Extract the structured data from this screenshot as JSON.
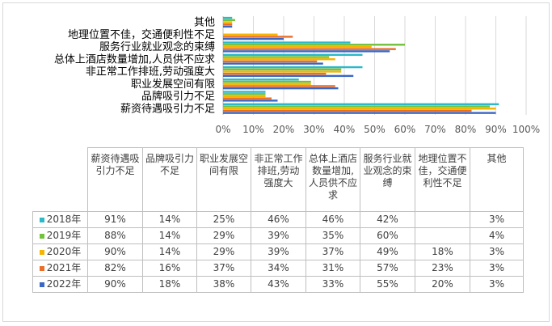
{
  "chart_data": {
    "type": "bar",
    "orientation": "horizontal",
    "categories": [
      "薪资待遇吸引力不足",
      "品牌吸引力不足",
      "职业发展空间有限",
      "非正常工作排班,劳动强度大",
      "总体上酒店数量增加,人员供不应求",
      "服务行业就业观念的束缚",
      "地理位置不佳，交通便利性不足",
      "其他"
    ],
    "table_headers": [
      "薪资待遇吸引力不足",
      "品牌吸引力不足",
      "职业发展空间有限",
      "非正常工作排班,劳动强度大",
      "总体上酒店数量增加,人员供不应求",
      "服务行业就业观念的束缚",
      "地理位置不佳，交通便利性不足",
      "其他"
    ],
    "xlim": [
      0,
      100
    ],
    "x_ticks": [
      "0%",
      "10%",
      "20%",
      "30%",
      "40%",
      "50%",
      "60%",
      "70%",
      "80%",
      "90%",
      "100%"
    ],
    "series": [
      {
        "name": "2018年",
        "color": "#2bb9c7",
        "values": [
          91,
          14,
          25,
          46,
          46,
          42,
          null,
          3
        ]
      },
      {
        "name": "2019年",
        "color": "#72c13a",
        "values": [
          88,
          14,
          29,
          39,
          35,
          60,
          null,
          4
        ]
      },
      {
        "name": "2020年",
        "color": "#f4b400",
        "values": [
          90,
          14,
          29,
          39,
          37,
          49,
          18,
          3
        ]
      },
      {
        "name": "2021年",
        "color": "#ea6d28",
        "values": [
          82,
          16,
          37,
          34,
          31,
          57,
          23,
          3
        ]
      },
      {
        "name": "2022年",
        "color": "#3a66c4",
        "values": [
          90,
          18,
          38,
          43,
          33,
          55,
          20,
          3
        ]
      }
    ],
    "table": [
      [
        "91%",
        "14%",
        "25%",
        "46%",
        "46%",
        "42%",
        "",
        "3%"
      ],
      [
        "88%",
        "14%",
        "29%",
        "39%",
        "35%",
        "60%",
        "",
        "4%"
      ],
      [
        "90%",
        "14%",
        "29%",
        "39%",
        "37%",
        "49%",
        "18%",
        "3%"
      ],
      [
        "82%",
        "16%",
        "37%",
        "34%",
        "31%",
        "57%",
        "23%",
        "3%"
      ],
      [
        "90%",
        "18%",
        "38%",
        "43%",
        "33%",
        "55%",
        "20%",
        "3%"
      ]
    ]
  }
}
